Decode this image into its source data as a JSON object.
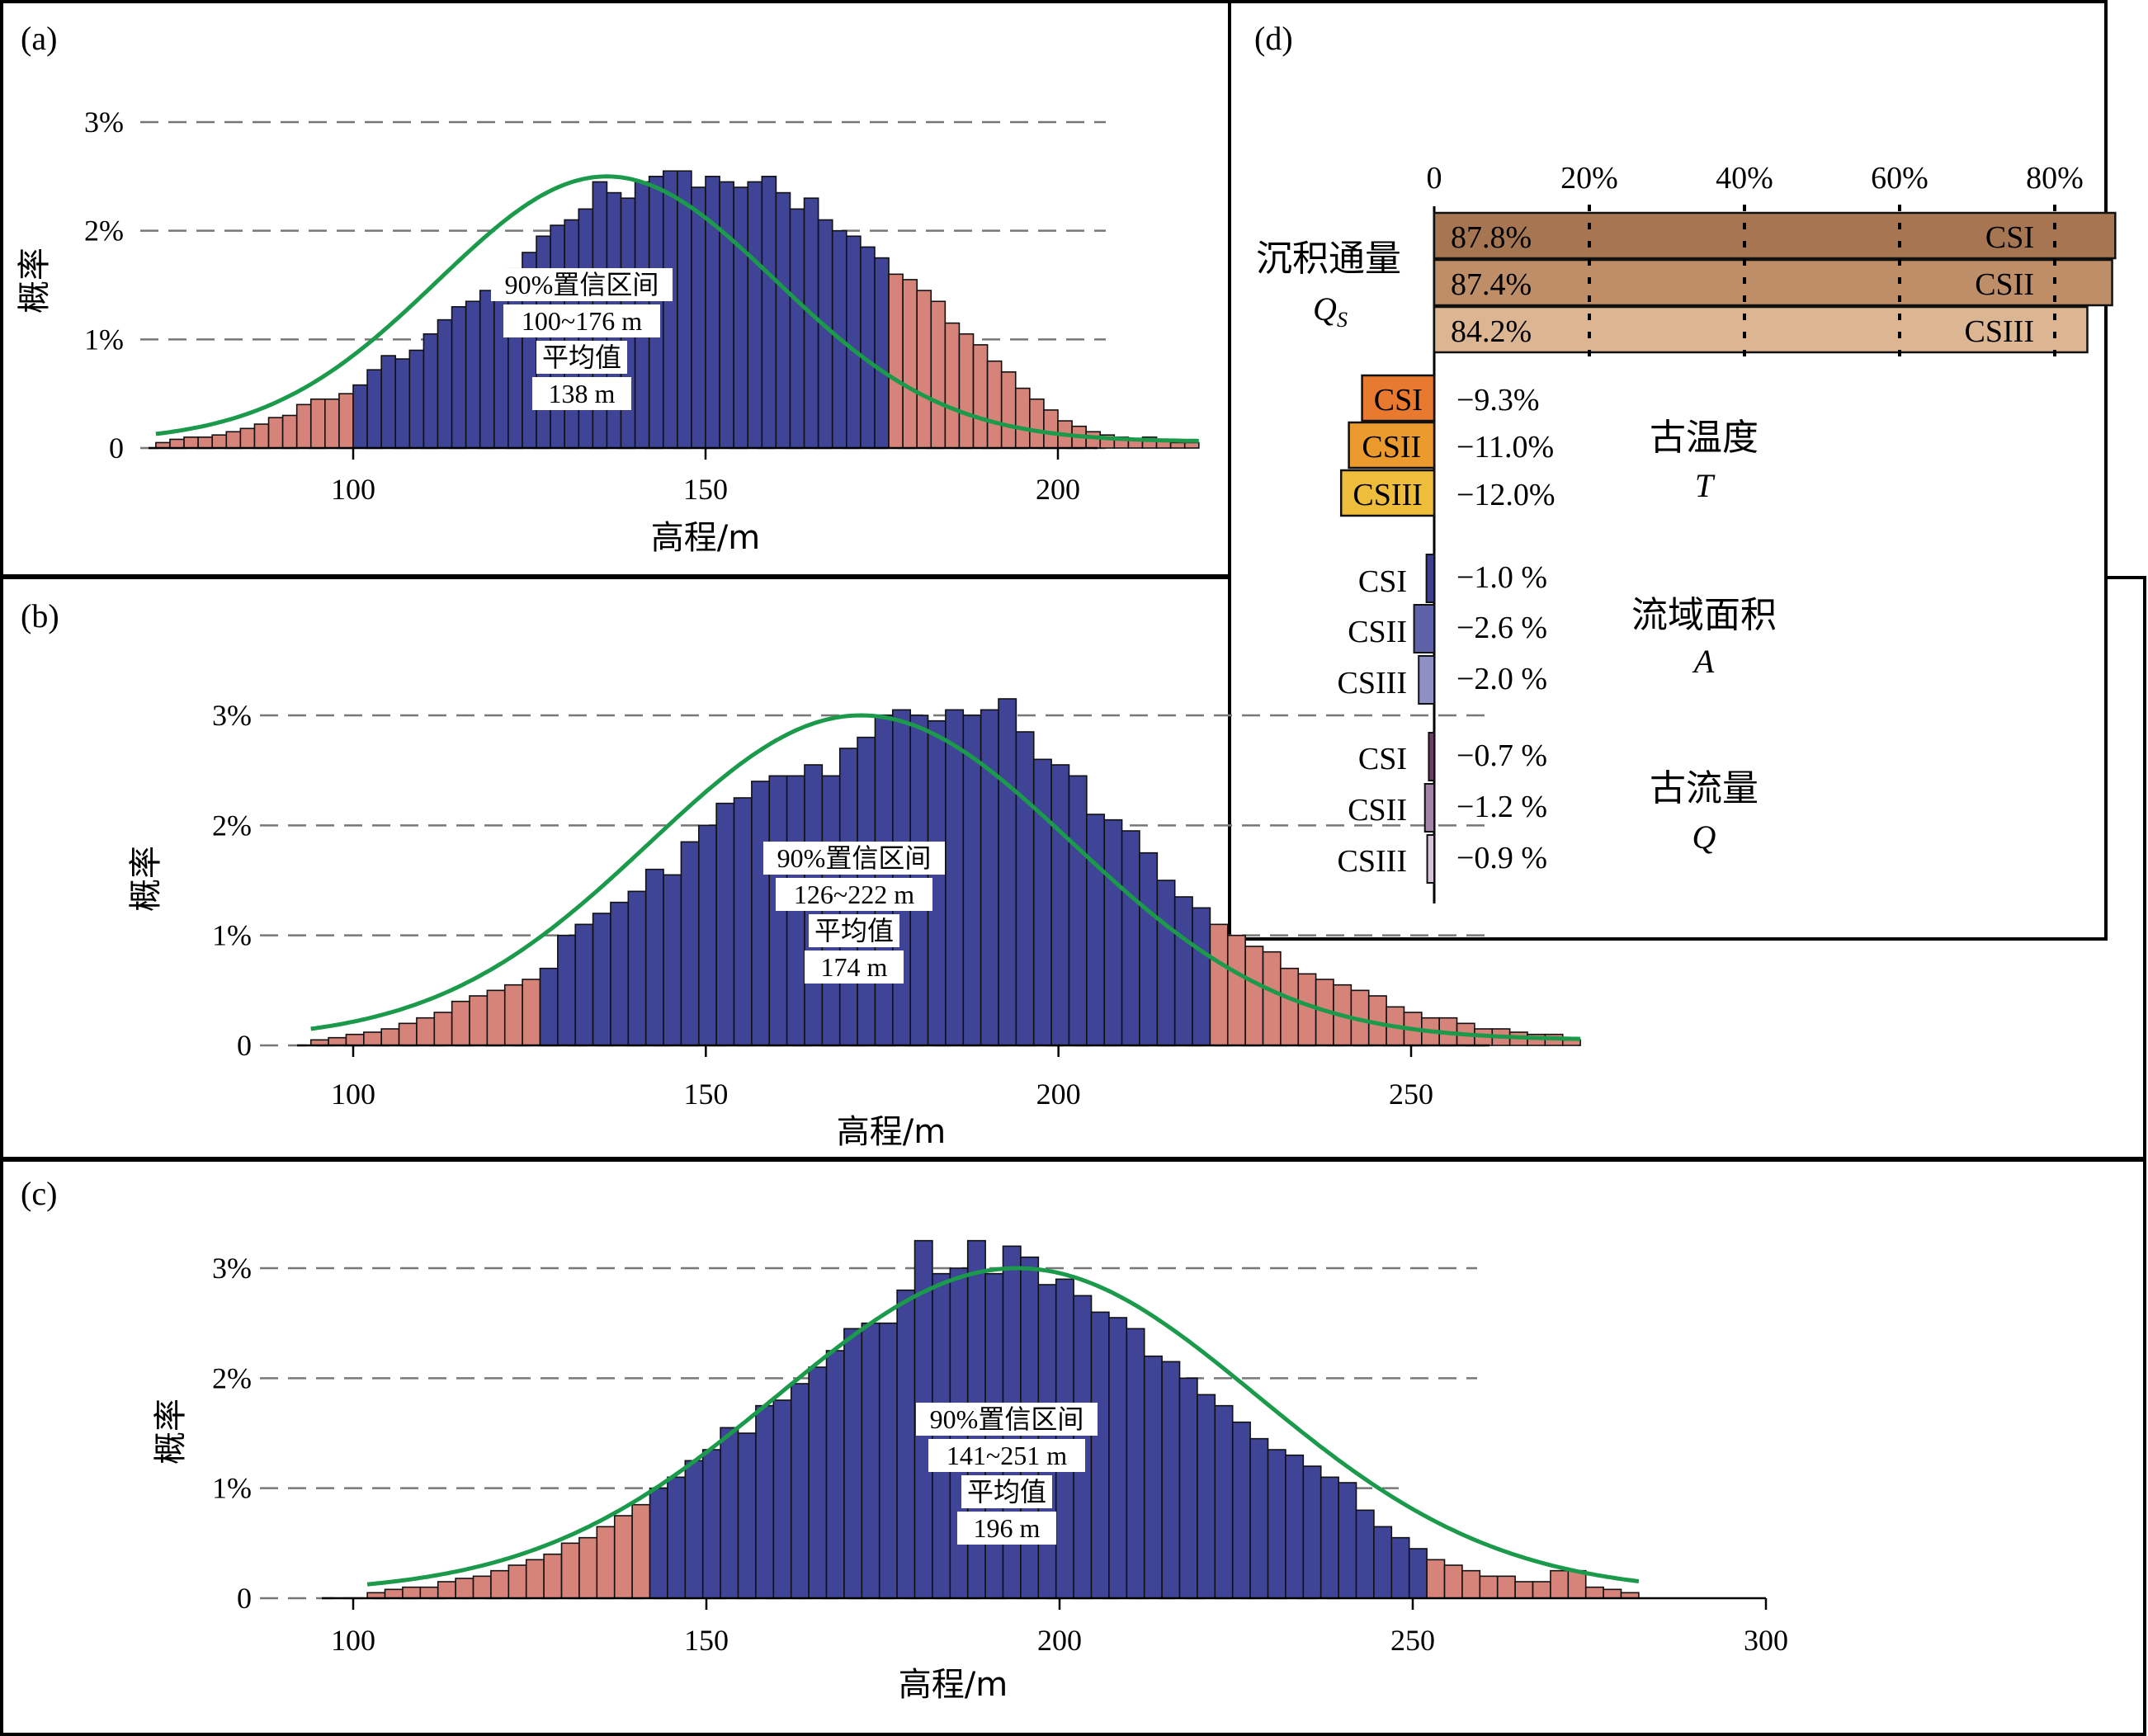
{
  "panels": [
    {
      "label": "(a)",
      "xlabel": "高程/m",
      "ylabel": "概率",
      "ci_label": "90%置信区间",
      "ci_range": "100~176 m",
      "mean_label": "平均值",
      "mean_value": "138 m",
      "xticks": [
        "100",
        "150",
        "200"
      ],
      "yticks": [
        "0",
        "1%",
        "2%",
        "3%"
      ]
    },
    {
      "label": "(b)",
      "xlabel": "高程/m",
      "ylabel": "概率",
      "ci_label": "90%置信区间",
      "ci_range": "126~222 m",
      "mean_label": "平均值",
      "mean_value": "174 m",
      "xticks": [
        "100",
        "150",
        "200",
        "250"
      ],
      "yticks": [
        "0",
        "1%",
        "2%",
        "3%"
      ]
    },
    {
      "label": "(c)",
      "xlabel": "高程/m",
      "ylabel": "概率",
      "ci_label": "90%置信区间",
      "ci_range": "141~251 m",
      "mean_label": "平均值",
      "mean_value": "196 m",
      "xticks": [
        "100",
        "150",
        "200",
        "250",
        "300"
      ],
      "yticks": [
        "0",
        "1%",
        "2%",
        "3%"
      ]
    }
  ],
  "panel_d": {
    "label": "(d)",
    "xticks": [
      "0",
      "20%",
      "40%",
      "60%",
      "80%"
    ],
    "groups": [
      {
        "name": "沉积通量",
        "symbol": "Q",
        "subscript": "S"
      },
      {
        "name": "古温度",
        "symbol": "T"
      },
      {
        "name": "流域面积",
        "symbol": "A"
      },
      {
        "name": "古流量",
        "symbol": "Q"
      }
    ]
  },
  "colors": {
    "inside_ci": "#3f4497",
    "outside_ci": "#d6837a",
    "fit_curve": "#1a9a4a",
    "qs": [
      "#a57651",
      "#bd8e67",
      "#dcb592"
    ],
    "temp": [
      "#e87a30",
      "#eb9a2e",
      "#efbd3c"
    ],
    "area": [
      "#3c3f8c",
      "#5e60a8",
      "#8f8fc4"
    ],
    "flow": [
      "#6a3f6a",
      "#a384a8",
      "#d6c3d6"
    ]
  },
  "chart_data": [
    {
      "type": "bar",
      "title": "(a)",
      "xlabel": "高程/m",
      "ylabel": "概率",
      "xlim": [
        66,
        208
      ],
      "ylim": [
        0,
        3
      ],
      "bin_start": 72,
      "bin_width": 2,
      "ci": [
        100,
        176
      ],
      "mean": 138,
      "values": [
        0.05,
        0.08,
        0.1,
        0.1,
        0.12,
        0.15,
        0.18,
        0.22,
        0.28,
        0.3,
        0.4,
        0.45,
        0.45,
        0.5,
        0.58,
        0.72,
        0.85,
        0.82,
        0.9,
        1.05,
        1.18,
        1.3,
        1.35,
        1.45,
        1.55,
        1.65,
        1.8,
        1.95,
        2.05,
        2.1,
        2.2,
        2.45,
        2.35,
        2.3,
        2.45,
        2.5,
        2.55,
        2.55,
        2.4,
        2.5,
        2.45,
        2.4,
        2.45,
        2.5,
        2.35,
        2.2,
        2.3,
        2.1,
        2.0,
        1.95,
        1.85,
        1.75,
        1.6,
        1.55,
        1.45,
        1.35,
        1.15,
        1.05,
        0.95,
        0.8,
        0.7,
        0.55,
        0.45,
        0.35,
        0.25,
        0.2,
        0.15,
        0.12,
        0.1,
        0.08,
        0.1,
        0.08,
        0.05,
        0.05
      ],
      "fit": {
        "mean": 136,
        "sd": 24,
        "peak": 2.5,
        "floor": 0.06
      }
    },
    {
      "type": "bar",
      "title": "(b)",
      "xlabel": "高程/m",
      "ylabel": "概率",
      "xlim": [
        90,
        260
      ],
      "ylim": [
        0,
        3
      ],
      "bin_start": 94,
      "bin_width": 2.5,
      "ci": [
        126,
        222
      ],
      "mean": 174,
      "values": [
        0.05,
        0.07,
        0.1,
        0.12,
        0.15,
        0.2,
        0.25,
        0.3,
        0.4,
        0.45,
        0.5,
        0.55,
        0.6,
        0.7,
        1.0,
        1.1,
        1.2,
        1.3,
        1.4,
        1.6,
        1.55,
        1.85,
        2.0,
        2.2,
        2.25,
        2.4,
        2.45,
        2.45,
        2.55,
        2.45,
        2.7,
        2.8,
        3.0,
        3.05,
        3.0,
        2.95,
        3.05,
        3.0,
        3.05,
        3.15,
        2.85,
        2.6,
        2.55,
        2.45,
        2.1,
        2.05,
        1.95,
        1.75,
        1.5,
        1.35,
        1.25,
        1.1,
        1.0,
        0.9,
        0.85,
        0.7,
        0.65,
        0.6,
        0.55,
        0.5,
        0.45,
        0.35,
        0.3,
        0.25,
        0.25,
        0.2,
        0.15,
        0.15,
        0.12,
        0.1,
        0.1,
        0.05
      ],
      "fit": {
        "mean": 172,
        "sd": 30,
        "peak": 3.0,
        "floor": 0.05
      }
    },
    {
      "type": "bar",
      "title": "(c)",
      "xlabel": "高程/m",
      "ylabel": "概率",
      "xlim": [
        100,
        302
      ],
      "ylim": [
        0,
        3
      ],
      "bin_start": 102,
      "bin_width": 2.5,
      "ci": [
        141,
        251
      ],
      "mean": 196,
      "values": [
        0.05,
        0.08,
        0.1,
        0.1,
        0.15,
        0.18,
        0.2,
        0.25,
        0.3,
        0.35,
        0.4,
        0.5,
        0.55,
        0.65,
        0.75,
        0.85,
        1.0,
        1.1,
        1.25,
        1.35,
        1.55,
        1.5,
        1.75,
        1.8,
        1.95,
        2.1,
        2.25,
        2.45,
        2.5,
        2.5,
        2.8,
        3.25,
        2.95,
        3.0,
        3.25,
        2.95,
        3.2,
        3.1,
        2.85,
        2.9,
        2.75,
        2.6,
        2.55,
        2.45,
        2.2,
        2.15,
        2.0,
        1.85,
        1.75,
        1.6,
        1.45,
        1.35,
        1.3,
        1.2,
        1.1,
        1.05,
        0.8,
        0.65,
        0.55,
        0.45,
        0.35,
        0.3,
        0.25,
        0.2,
        0.2,
        0.15,
        0.15,
        0.25,
        0.25,
        0.1,
        0.08,
        0.05
      ],
      "fit": {
        "mean": 194,
        "sd": 34,
        "peak": 3.0,
        "floor": 0.05
      }
    },
    {
      "type": "bar",
      "title": "(d)",
      "orientation": "horizontal",
      "xlim": [
        0,
        90
      ],
      "series": [
        {
          "name": "沉积通量 QS",
          "bars": [
            {
              "label": "CSI",
              "value": 87.8,
              "text": "87.8%"
            },
            {
              "label": "CSII",
              "value": 87.4,
              "text": "87.4%"
            },
            {
              "label": "CSIII",
              "value": 84.2,
              "text": "84.2%"
            }
          ]
        },
        {
          "name": "古温度 T",
          "bars": [
            {
              "label": "CSI",
              "value": -9.3,
              "text": "−9.3%"
            },
            {
              "label": "CSII",
              "value": -11.0,
              "text": "−11.0%"
            },
            {
              "label": "CSIII",
              "value": -12.0,
              "text": "−12.0%"
            }
          ]
        },
        {
          "name": "流域面积 A",
          "bars": [
            {
              "label": "CSI",
              "value": -1.0,
              "text": "−1.0 %"
            },
            {
              "label": "CSII",
              "value": -2.6,
              "text": "−2.6 %"
            },
            {
              "label": "CSIII",
              "value": -2.0,
              "text": "−2.0 %"
            }
          ]
        },
        {
          "name": "古流量 Q",
          "bars": [
            {
              "label": "CSI",
              "value": -0.7,
              "text": "−0.7 %"
            },
            {
              "label": "CSII",
              "value": -1.2,
              "text": "−1.2 %"
            },
            {
              "label": "CSIII",
              "value": -0.9,
              "text": "−0.9 %"
            }
          ]
        }
      ]
    }
  ]
}
